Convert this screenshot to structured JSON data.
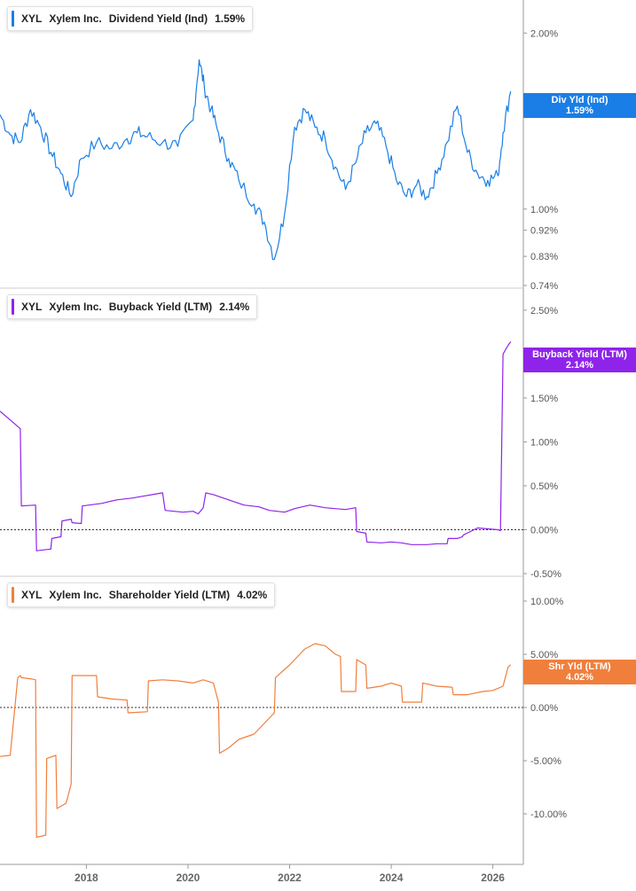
{
  "colors": {
    "dividend": "#1a7ee6",
    "buyback": "#8e24ea",
    "shareholder": "#f07f3c"
  },
  "panels": [
    {
      "ticker": "XYL",
      "company": "Xylem Inc.",
      "metric": "Dividend Yield (Ind)",
      "value": "1.59%",
      "flag_label": "Div Yld (Ind)",
      "flag_value": "1.59%"
    },
    {
      "ticker": "XYL",
      "company": "Xylem Inc.",
      "metric": "Buyback Yield (LTM)",
      "value": "2.14%",
      "flag_label": "Buyback Yield (LTM)",
      "flag_value": "2.14%"
    },
    {
      "ticker": "XYL",
      "company": "Xylem Inc.",
      "metric": "Shareholder Yield (LTM)",
      "value": "4.02%",
      "flag_label": "Shr Yld (LTM)",
      "flag_value": "4.02%"
    }
  ],
  "chart_data": [
    {
      "type": "line",
      "title": "XYL Xylem Inc. Dividend Yield (Ind)",
      "scale": "log",
      "ylim": [
        0.74,
        2.2
      ],
      "yticks": [
        2.0,
        1.0,
        0.92,
        0.83,
        0.74
      ],
      "ytick_labels": [
        "2.00%",
        "1.00%",
        "0.92%",
        "0.83%",
        "0.74%"
      ],
      "x": [
        2016.3,
        2016.5,
        2016.7,
        2016.9,
        2017.1,
        2017.3,
        2017.5,
        2017.7,
        2017.9,
        2018.2,
        2018.5,
        2018.8,
        2019.0,
        2019.2,
        2019.5,
        2019.8,
        2020.1,
        2020.22,
        2020.32,
        2020.45,
        2020.6,
        2020.8,
        2021.0,
        2021.3,
        2021.5,
        2021.7,
        2021.9,
        2022.1,
        2022.3,
        2022.5,
        2022.7,
        2022.9,
        2023.1,
        2023.3,
        2023.5,
        2023.7,
        2023.9,
        2024.1,
        2024.3,
        2024.5,
        2024.7,
        2024.9,
        2025.1,
        2025.3,
        2025.5,
        2025.7,
        2025.9,
        2026.1,
        2026.2,
        2026.35
      ],
      "values": [
        1.45,
        1.34,
        1.3,
        1.48,
        1.38,
        1.25,
        1.15,
        1.05,
        1.22,
        1.3,
        1.27,
        1.32,
        1.35,
        1.33,
        1.3,
        1.28,
        1.42,
        1.8,
        1.62,
        1.48,
        1.35,
        1.22,
        1.12,
        1.02,
        0.95,
        0.82,
        0.98,
        1.38,
        1.48,
        1.38,
        1.32,
        1.18,
        1.08,
        1.2,
        1.35,
        1.4,
        1.28,
        1.12,
        1.05,
        1.1,
        1.05,
        1.15,
        1.3,
        1.5,
        1.25,
        1.15,
        1.12,
        1.14,
        1.35,
        1.59
      ],
      "last_value": 1.59
    },
    {
      "type": "line",
      "title": "XYL Xylem Inc. Buyback Yield (LTM)",
      "ylim": [
        -0.5,
        2.65
      ],
      "yticks": [
        2.5,
        2.0,
        1.5,
        1.0,
        0.5,
        0.0,
        -0.5
      ],
      "ytick_labels": [
        "2.50%",
        "2.00%",
        "1.50%",
        "1.00%",
        "0.50%",
        "0.00%",
        "-0.50%"
      ],
      "zero_line": 0,
      "x": [
        2016.3,
        2016.5,
        2016.6,
        2016.7,
        2016.72,
        2017.0,
        2017.02,
        2017.3,
        2017.32,
        2017.5,
        2017.52,
        2017.7,
        2017.72,
        2017.9,
        2017.92,
        2018.3,
        2018.6,
        2018.9,
        2019.1,
        2019.3,
        2019.5,
        2019.55,
        2019.9,
        2020.1,
        2020.2,
        2020.3,
        2020.35,
        2020.5,
        2020.8,
        2021.1,
        2021.4,
        2021.6,
        2021.9,
        2022.1,
        2022.4,
        2022.7,
        2022.9,
        2023.1,
        2023.3,
        2023.32,
        2023.5,
        2023.52,
        2023.8,
        2024.0,
        2024.2,
        2024.4,
        2024.7,
        2024.9,
        2025.1,
        2025.12,
        2025.3,
        2025.4,
        2025.42,
        2025.7,
        2025.9,
        2026.1,
        2026.15,
        2026.2,
        2026.3,
        2026.35
      ],
      "values": [
        1.35,
        1.25,
        1.2,
        1.15,
        0.27,
        0.28,
        -0.24,
        -0.22,
        -0.1,
        -0.08,
        0.1,
        0.12,
        0.08,
        0.07,
        0.27,
        0.3,
        0.34,
        0.36,
        0.38,
        0.4,
        0.42,
        0.22,
        0.2,
        0.21,
        0.18,
        0.25,
        0.42,
        0.4,
        0.34,
        0.28,
        0.26,
        0.22,
        0.2,
        0.24,
        0.28,
        0.25,
        0.24,
        0.23,
        0.25,
        -0.02,
        -0.04,
        -0.14,
        -0.15,
        -0.14,
        -0.15,
        -0.17,
        -0.17,
        -0.16,
        -0.16,
        -0.1,
        -0.1,
        -0.08,
        -0.06,
        0.02,
        0.01,
        0.0,
        -0.01,
        2.0,
        2.1,
        2.14
      ],
      "last_value": 2.14
    },
    {
      "type": "line",
      "title": "XYL Xylem Inc. Shareholder Yield (LTM)",
      "ylim": [
        -14.5,
        11.5
      ],
      "yticks": [
        10,
        5,
        0,
        -5,
        -10
      ],
      "ytick_labels": [
        "10.00%",
        "5.00%",
        "0.00%",
        "-5.00%",
        "-10.00%"
      ],
      "zero_line": 0,
      "x": [
        2016.3,
        2016.5,
        2016.65,
        2016.7,
        2016.72,
        2016.9,
        2017.0,
        2017.02,
        2017.2,
        2017.22,
        2017.4,
        2017.42,
        2017.6,
        2017.7,
        2017.72,
        2018.0,
        2018.2,
        2018.22,
        2018.5,
        2018.8,
        2018.82,
        2019.2,
        2019.22,
        2019.5,
        2019.8,
        2020.1,
        2020.3,
        2020.5,
        2020.6,
        2020.62,
        2020.8,
        2021.0,
        2021.3,
        2021.5,
        2021.7,
        2021.72,
        2022.0,
        2022.3,
        2022.5,
        2022.7,
        2022.9,
        2023.0,
        2023.02,
        2023.3,
        2023.32,
        2023.5,
        2023.52,
        2023.8,
        2024.0,
        2024.2,
        2024.22,
        2024.6,
        2024.62,
        2024.9,
        2025.2,
        2025.22,
        2025.5,
        2025.8,
        2026.0,
        2026.1,
        2026.2,
        2026.3,
        2026.35
      ],
      "values": [
        -4.6,
        -4.5,
        2.8,
        3.0,
        2.8,
        2.7,
        2.6,
        -12.2,
        -12.0,
        -4.8,
        -4.5,
        -9.5,
        -9.0,
        -7.2,
        3.0,
        3.0,
        3.0,
        1.0,
        0.8,
        0.7,
        -0.5,
        -0.4,
        2.5,
        2.6,
        2.5,
        2.3,
        2.6,
        2.3,
        0.5,
        -4.3,
        -3.8,
        -3.0,
        -2.5,
        -1.5,
        -0.5,
        2.8,
        4.0,
        5.5,
        6.0,
        5.8,
        5.0,
        4.8,
        1.5,
        1.5,
        4.5,
        4.0,
        1.8,
        2.0,
        2.3,
        2.0,
        0.5,
        0.5,
        2.3,
        2.0,
        1.9,
        1.2,
        1.2,
        1.5,
        1.6,
        1.8,
        2.0,
        3.8,
        4.02
      ],
      "last_value": 4.02
    }
  ],
  "x_axis": {
    "min": 2016.3,
    "max": 2026.6,
    "ticks": [
      2018,
      2020,
      2022,
      2024,
      2026
    ],
    "tick_labels": [
      "2018",
      "2020",
      "2022",
      "2024",
      "2026"
    ]
  }
}
